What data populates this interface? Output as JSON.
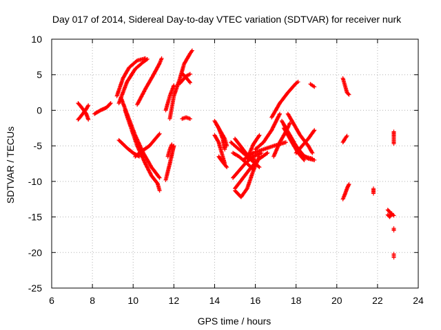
{
  "chart_data": {
    "type": "scatter",
    "title": "Day 017 of 2014, Sidereal Day-to-day VTEC variation (SDTVAR) for receiver nurk",
    "xlabel": "GPS time / hours",
    "ylabel": "SDTVAR / TECUs",
    "xlim": [
      6,
      24
    ],
    "ylim": [
      -25,
      10
    ],
    "xticks": [
      6,
      8,
      10,
      12,
      14,
      16,
      18,
      20,
      22,
      24
    ],
    "yticks": [
      -25,
      -20,
      -15,
      -10,
      -5,
      0,
      5,
      10
    ],
    "grid": true,
    "marker": "+",
    "color": "#ff0000",
    "arcs": [
      [
        [
          7.3,
          1.0
        ],
        [
          7.5,
          0.3
        ],
        [
          7.7,
          -0.5
        ],
        [
          7.8,
          -1.3
        ]
      ],
      [
        [
          7.3,
          -1.3
        ],
        [
          7.5,
          -0.6
        ],
        [
          7.7,
          0.2
        ],
        [
          7.8,
          0.7
        ]
      ],
      [
        [
          8.1,
          -0.5
        ],
        [
          8.4,
          0.0
        ],
        [
          8.7,
          0.4
        ],
        [
          8.9,
          1.0
        ]
      ],
      [
        [
          9.2,
          2.0
        ],
        [
          9.5,
          4.5
        ],
        [
          9.8,
          6.0
        ],
        [
          10.2,
          7.0
        ],
        [
          10.6,
          7.3
        ]
      ],
      [
        [
          9.3,
          1.0
        ],
        [
          9.7,
          4.0
        ],
        [
          10.1,
          5.8
        ],
        [
          10.5,
          6.8
        ],
        [
          10.7,
          7.2
        ]
      ],
      [
        [
          9.6,
          0.0
        ],
        [
          9.9,
          -2.5
        ],
        [
          10.2,
          -5.0
        ],
        [
          10.6,
          -7.5
        ],
        [
          10.9,
          -9.2
        ],
        [
          11.2,
          -10.3
        ],
        [
          11.3,
          -11.3
        ]
      ],
      [
        [
          9.4,
          1.8
        ],
        [
          9.7,
          -0.5
        ],
        [
          10.1,
          -3.5
        ],
        [
          10.5,
          -6.0
        ],
        [
          10.9,
          -8.0
        ],
        [
          11.3,
          -9.5
        ]
      ],
      [
        [
          9.3,
          -4.2
        ],
        [
          9.7,
          -5.3
        ],
        [
          10.0,
          -6.0
        ],
        [
          10.3,
          -6.5
        ]
      ],
      [
        [
          10.1,
          -6.5
        ],
        [
          10.4,
          -5.8
        ],
        [
          10.8,
          -5.0
        ],
        [
          11.3,
          -3.3
        ]
      ],
      [
        [
          10.2,
          0.8
        ],
        [
          10.6,
          3.0
        ],
        [
          11.0,
          5.0
        ],
        [
          11.3,
          6.6
        ],
        [
          11.4,
          7.3
        ]
      ],
      [
        [
          11.6,
          -9.8
        ],
        [
          11.8,
          -7.5
        ],
        [
          12.0,
          -5.0
        ]
      ],
      [
        [
          11.7,
          -6.5
        ],
        [
          11.8,
          -5.5
        ],
        [
          11.9,
          -4.8
        ]
      ],
      [
        [
          11.8,
          -1.2
        ],
        [
          12.0,
          2.0
        ],
        [
          12.3,
          4.5
        ],
        [
          12.5,
          6.5
        ],
        [
          12.8,
          8.0
        ],
        [
          12.9,
          8.4
        ]
      ],
      [
        [
          11.6,
          0.0
        ],
        [
          11.8,
          2.0
        ],
        [
          12.0,
          3.5
        ]
      ],
      [
        [
          12.4,
          5.2
        ],
        [
          12.6,
          4.6
        ],
        [
          12.8,
          3.9
        ]
      ],
      [
        [
          12.3,
          3.8
        ],
        [
          12.6,
          4.8
        ],
        [
          12.8,
          5.1
        ]
      ],
      [
        [
          12.4,
          -1.2
        ],
        [
          12.6,
          -1.0
        ],
        [
          12.8,
          -1.2
        ]
      ],
      [
        [
          14.0,
          -1.5
        ],
        [
          14.2,
          -2.5
        ],
        [
          14.4,
          -4.0
        ],
        [
          14.5,
          -5.5
        ]
      ],
      [
        [
          14.0,
          -3.5
        ],
        [
          14.2,
          -4.5
        ],
        [
          14.3,
          -5.5
        ],
        [
          14.5,
          -7.5
        ]
      ],
      [
        [
          14.1,
          -2.0
        ],
        [
          14.3,
          -3.0
        ],
        [
          14.5,
          -4.0
        ],
        [
          14.6,
          -5.0
        ]
      ],
      [
        [
          14.2,
          -6.5
        ],
        [
          14.4,
          -7.3
        ],
        [
          14.6,
          -8.0
        ]
      ],
      [
        [
          14.8,
          -4.5
        ],
        [
          15.2,
          -5.5
        ],
        [
          15.6,
          -6.5
        ],
        [
          16.0,
          -7.0
        ]
      ],
      [
        [
          14.9,
          -6.0
        ],
        [
          15.2,
          -6.5
        ],
        [
          15.6,
          -7.5
        ],
        [
          15.9,
          -8.3
        ]
      ],
      [
        [
          15.0,
          -4.0
        ],
        [
          15.4,
          -5.5
        ],
        [
          15.8,
          -7.0
        ],
        [
          16.2,
          -8.0
        ]
      ],
      [
        [
          14.9,
          -9.5
        ],
        [
          15.2,
          -8.5
        ],
        [
          15.5,
          -7.5
        ],
        [
          15.9,
          -6.5
        ],
        [
          16.3,
          -6.0
        ]
      ],
      [
        [
          15.0,
          -11.0
        ],
        [
          15.4,
          -9.5
        ],
        [
          15.8,
          -8.0
        ],
        [
          16.2,
          -6.8
        ],
        [
          16.6,
          -6.0
        ]
      ],
      [
        [
          15.0,
          -11.3
        ],
        [
          15.3,
          -12.2
        ],
        [
          15.6,
          -11.0
        ],
        [
          15.9,
          -8.5
        ],
        [
          16.2,
          -6.5
        ]
      ],
      [
        [
          15.4,
          -7.0
        ],
        [
          15.9,
          -6.0
        ],
        [
          16.4,
          -5.5
        ],
        [
          16.9,
          -5.0
        ],
        [
          17.5,
          -4.5
        ]
      ],
      [
        [
          15.6,
          -6.8
        ],
        [
          15.9,
          -4.8
        ],
        [
          16.2,
          -3.5
        ]
      ],
      [
        [
          16.0,
          -5.5
        ],
        [
          16.4,
          -4.5
        ],
        [
          16.8,
          -2.8
        ],
        [
          17.2,
          -0.5
        ]
      ],
      [
        [
          16.8,
          -1.0
        ],
        [
          17.2,
          1.0
        ],
        [
          17.6,
          2.5
        ],
        [
          18.0,
          3.8
        ],
        [
          18.1,
          4.0
        ]
      ],
      [
        [
          16.9,
          -6.5
        ],
        [
          17.2,
          -4.5
        ],
        [
          17.5,
          -3.0
        ],
        [
          17.7,
          -1.8
        ]
      ],
      [
        [
          17.3,
          -1.5
        ],
        [
          17.6,
          -3.0
        ],
        [
          18.0,
          -5.0
        ],
        [
          18.4,
          -6.5
        ],
        [
          18.8,
          -6.8
        ]
      ],
      [
        [
          17.4,
          -2.5
        ],
        [
          17.8,
          -4.5
        ],
        [
          18.2,
          -6.0
        ],
        [
          18.6,
          -6.8
        ],
        [
          18.9,
          -7.0
        ]
      ],
      [
        [
          17.4,
          -2.0
        ],
        [
          17.8,
          -4.5
        ],
        [
          18.1,
          -6.0
        ],
        [
          18.4,
          -7.0
        ]
      ],
      [
        [
          17.6,
          -0.5
        ],
        [
          17.9,
          -2.0
        ],
        [
          18.2,
          -3.5
        ],
        [
          18.6,
          -5.0
        ],
        [
          18.8,
          -6.0
        ]
      ],
      [
        [
          18.0,
          -6.0
        ],
        [
          18.3,
          -5.0
        ],
        [
          18.6,
          -4.0
        ],
        [
          18.9,
          -2.8
        ]
      ],
      [
        [
          18.7,
          3.7
        ],
        [
          18.8,
          3.5
        ],
        [
          18.9,
          3.3
        ]
      ],
      [
        [
          20.3,
          4.5
        ],
        [
          20.4,
          3.5
        ],
        [
          20.5,
          2.5
        ],
        [
          20.6,
          2.2
        ]
      ],
      [
        [
          20.3,
          -4.5
        ],
        [
          20.4,
          -4.0
        ],
        [
          20.5,
          -3.6
        ]
      ],
      [
        [
          20.3,
          -12.5
        ],
        [
          20.4,
          -11.8
        ],
        [
          20.5,
          -11.0
        ],
        [
          20.6,
          -10.4
        ]
      ],
      [
        [
          21.8,
          -11.0
        ],
        [
          21.8,
          -11.7
        ]
      ],
      [
        [
          22.5,
          -14.0
        ],
        [
          22.6,
          -14.3
        ],
        [
          22.7,
          -14.6
        ],
        [
          22.8,
          -14.8
        ]
      ],
      [
        [
          22.5,
          -14.7
        ],
        [
          22.6,
          -15.0
        ],
        [
          22.7,
          -14.5
        ]
      ],
      [
        [
          22.8,
          -3.0
        ],
        [
          22.8,
          -4.0
        ],
        [
          22.8,
          -4.7
        ]
      ],
      [
        [
          22.8,
          -16.6
        ],
        [
          22.8,
          -16.9
        ]
      ],
      [
        [
          22.8,
          -20.2
        ],
        [
          22.8,
          -20.7
        ]
      ]
    ]
  }
}
